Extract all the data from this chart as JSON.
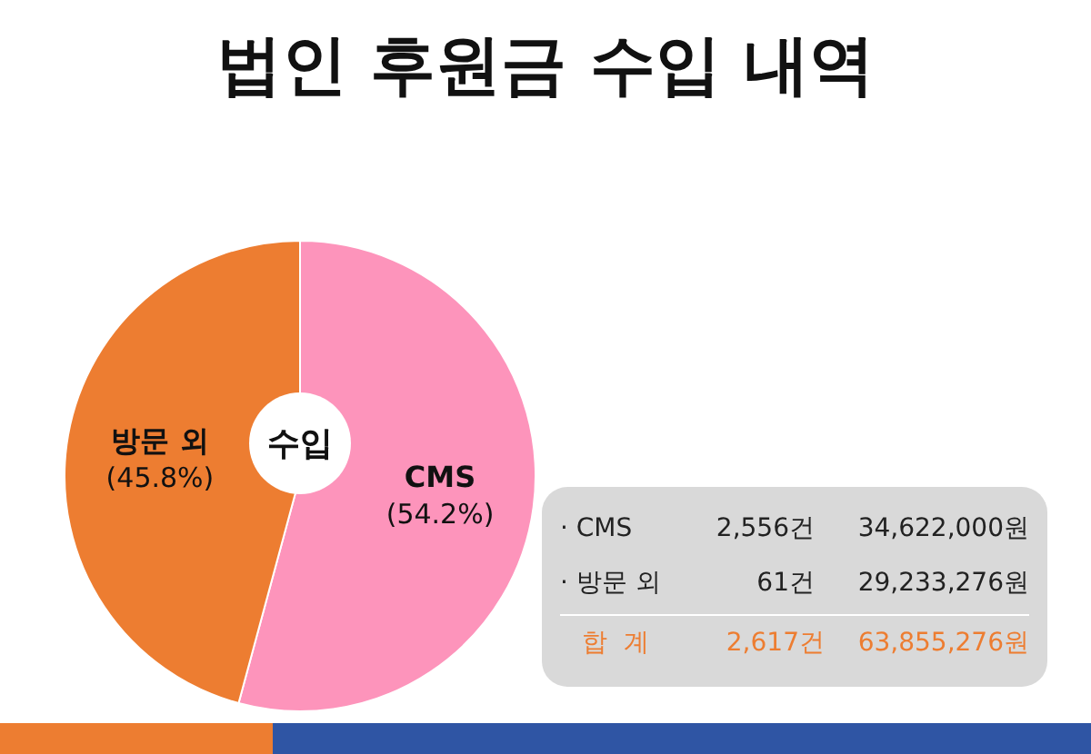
{
  "chart_data": {
    "type": "pie",
    "title": "법인 후원금 수입 내역",
    "categories": [
      "CMS",
      "방문 외"
    ],
    "values": [
      54.2,
      45.8
    ],
    "colors": [
      "#fd94bb",
      "#ed7d31"
    ],
    "value_labels": [
      "(54.2%)",
      "(45.8%)"
    ],
    "legend": false,
    "annotations": [
      "수입",
      "· CMS",
      "2,556건",
      "34,622,000원",
      "· 방문 외",
      "61건",
      "29,233,276원",
      "합  계",
      "2,617건",
      "63,855,276원"
    ]
  }
}
